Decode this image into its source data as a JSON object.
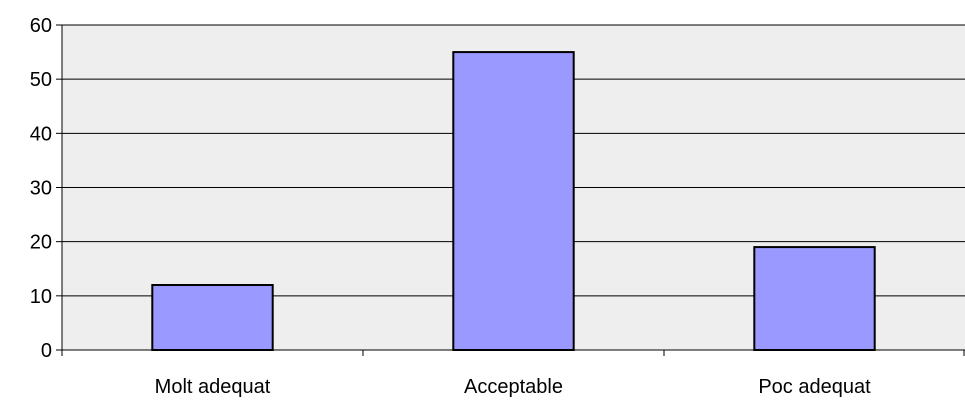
{
  "chart_data": {
    "type": "bar",
    "categories": [
      "Molt adequat",
      "Acceptable",
      "Poc adequat"
    ],
    "values": [
      12,
      55,
      19
    ],
    "title": "",
    "xlabel": "",
    "ylabel": "",
    "ylim": [
      0,
      60
    ],
    "yticks": [
      "0",
      "10",
      "20",
      "30",
      "40",
      "50",
      "60"
    ],
    "grid": true,
    "legend": "none",
    "colors": {
      "bar_fill": "#9999ff",
      "bar_stroke": "#000000",
      "plot_background": "#eeeeee",
      "grid": "#000000"
    }
  }
}
